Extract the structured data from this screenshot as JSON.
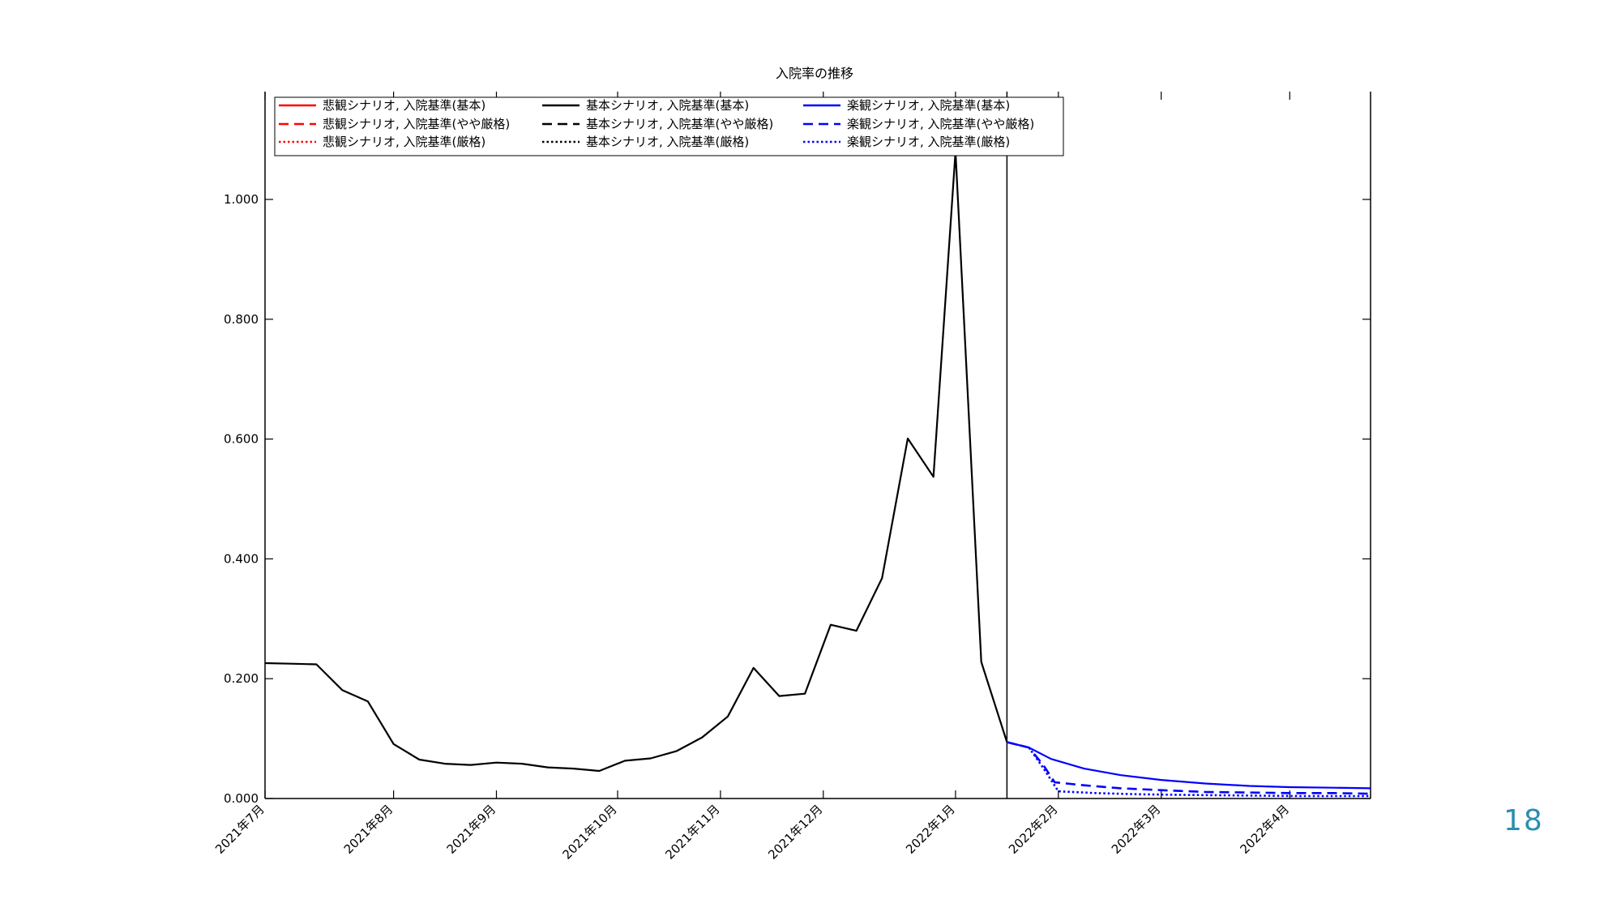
{
  "slide": {
    "page_number": "18"
  },
  "colors": {
    "pessimistic": "#ff0000",
    "base": "#000000",
    "optimistic": "#0000ff",
    "page_number": "#2a8fb0"
  },
  "chart_data": {
    "type": "line",
    "title": "入院率の推移",
    "xlabel": "",
    "ylabel": "",
    "ylim": [
      0,
      1.18
    ],
    "grid": false,
    "legend_position": "top",
    "yticks": [
      0,
      0.2,
      0.4,
      0.6,
      0.8,
      1.0
    ],
    "ytick_labels": [
      "0.000",
      "0.200",
      "0.400",
      "0.600",
      "0.800",
      "1.000"
    ],
    "xlim": [
      "2021-06-27",
      "2022-04-24"
    ],
    "xticks": [
      {
        "date": "2021-06-27",
        "label": "2021年7月"
      },
      {
        "date": "2021-08-01",
        "label": "2021年8月"
      },
      {
        "date": "2021-08-29",
        "label": "2021年9月"
      },
      {
        "date": "2021-10-01",
        "label": "2021年10月"
      },
      {
        "date": "2021-10-29",
        "label": "2021年11月"
      },
      {
        "date": "2021-11-26",
        "label": "2021年12月"
      },
      {
        "date": "2022-01-01",
        "label": "2022年1月"
      },
      {
        "date": "2022-01-29",
        "label": "2022年2月"
      },
      {
        "date": "2022-02-26",
        "label": "2022年3月"
      },
      {
        "date": "2022-04-02",
        "label": "2022年4月"
      }
    ],
    "forecast_start": "2022-01-15",
    "legend": [
      [
        "悲観シナリオ, 入院基準(基本)",
        "基本シナリオ, 入院基準(基本)",
        "楽観シナリオ, 入院基準(基本)"
      ],
      [
        "悲観シナリオ, 入院基準(やや厳格)",
        "基本シナリオ, 入院基準(やや厳格)",
        "楽観シナリオ, 入院基準(やや厳格)"
      ],
      [
        "悲観シナリオ, 入院基準(厳格)",
        "基本シナリオ, 入院基準(厳格)",
        "楽観シナリオ, 入院基準(厳格)"
      ]
    ],
    "legend_styles": {
      "colors": [
        "#ff0000",
        "#000000",
        "#0000ff"
      ],
      "dash": [
        "solid",
        "dashed",
        "dotted"
      ]
    },
    "series": [
      {
        "name": "基本シナリオ, 入院基準(基本)",
        "color": "#000000",
        "style": "solid",
        "points": [
          [
            "2021-06-27",
            0.226
          ],
          [
            "2021-07-04",
            0.225
          ],
          [
            "2021-07-11",
            0.224
          ],
          [
            "2021-07-18",
            0.181
          ],
          [
            "2021-07-25",
            0.162
          ],
          [
            "2021-08-01",
            0.091
          ],
          [
            "2021-08-08",
            0.065
          ],
          [
            "2021-08-15",
            0.058
          ],
          [
            "2021-08-22",
            0.056
          ],
          [
            "2021-08-29",
            0.06
          ],
          [
            "2021-09-05",
            0.058
          ],
          [
            "2021-09-12",
            0.052
          ],
          [
            "2021-09-19",
            0.05
          ],
          [
            "2021-09-26",
            0.046
          ],
          [
            "2021-10-03",
            0.063
          ],
          [
            "2021-10-10",
            0.067
          ],
          [
            "2021-10-17",
            0.079
          ],
          [
            "2021-10-24",
            0.102
          ],
          [
            "2021-10-31",
            0.137
          ],
          [
            "2021-11-07",
            0.218
          ],
          [
            "2021-11-14",
            0.171
          ],
          [
            "2021-11-21",
            0.175
          ],
          [
            "2021-11-28",
            0.29
          ],
          [
            "2021-12-05",
            0.28
          ],
          [
            "2021-12-12",
            0.368
          ],
          [
            "2021-12-19",
            0.601
          ],
          [
            "2021-12-26",
            0.537
          ],
          [
            "2022-01-01",
            1.08
          ],
          [
            "2022-01-08",
            0.228
          ],
          [
            "2022-01-15",
            0.094
          ]
        ]
      },
      {
        "name": "楽観シナリオ, 入院基準(基本)",
        "color": "#0000ff",
        "style": "solid",
        "points": [
          [
            "2022-01-15",
            0.094
          ],
          [
            "2022-01-21",
            0.085
          ],
          [
            "2022-01-27",
            0.066
          ],
          [
            "2022-02-05",
            0.05
          ],
          [
            "2022-02-15",
            0.039
          ],
          [
            "2022-02-26",
            0.031
          ],
          [
            "2022-03-10",
            0.025
          ],
          [
            "2022-03-22",
            0.021
          ],
          [
            "2022-04-02",
            0.019
          ],
          [
            "2022-04-14",
            0.018
          ],
          [
            "2022-04-24",
            0.017
          ]
        ]
      },
      {
        "name": "楽観シナリオ, 入院基準(やや厳格)",
        "color": "#0000ff",
        "style": "dashed",
        "points": [
          [
            "2022-01-15",
            0.094
          ],
          [
            "2022-01-21",
            0.085
          ],
          [
            "2022-01-25",
            0.055
          ],
          [
            "2022-01-28",
            0.027
          ],
          [
            "2022-02-05",
            0.022
          ],
          [
            "2022-02-15",
            0.017
          ],
          [
            "2022-02-26",
            0.014
          ],
          [
            "2022-03-10",
            0.011
          ],
          [
            "2022-03-22",
            0.01
          ],
          [
            "2022-04-02",
            0.009
          ],
          [
            "2022-04-14",
            0.009
          ],
          [
            "2022-04-24",
            0.008
          ]
        ]
      },
      {
        "name": "楽観シナリオ, 入院基準(厳格)",
        "color": "#0000ff",
        "style": "dotted",
        "points": [
          [
            "2022-01-15",
            0.094
          ],
          [
            "2022-01-21",
            0.085
          ],
          [
            "2022-01-25",
            0.05
          ],
          [
            "2022-01-29",
            0.012
          ],
          [
            "2022-02-08",
            0.009
          ],
          [
            "2022-02-20",
            0.007
          ],
          [
            "2022-03-05",
            0.006
          ],
          [
            "2022-03-20",
            0.005
          ],
          [
            "2022-04-05",
            0.004
          ],
          [
            "2022-04-24",
            0.004
          ]
        ]
      }
    ]
  }
}
